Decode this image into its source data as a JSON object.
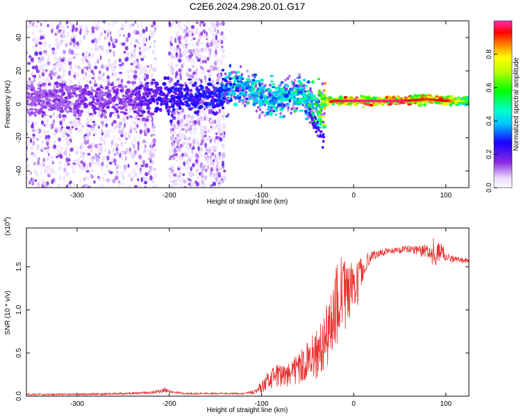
{
  "chart_data": [
    {
      "type": "heatmap",
      "title": "C2E6.2024.298.20.01.G17",
      "xlabel": "Height of straight line (km)",
      "ylabel": "Frequency (Hz)",
      "xlim": [
        -355,
        125
      ],
      "ylim": [
        -50,
        50
      ],
      "x_ticks": [
        -300,
        -200,
        -100,
        0,
        100
      ],
      "y_ticks": [
        -40,
        -20,
        0,
        20,
        40
      ],
      "colorbar": {
        "label": "Normalized spectral amplitude",
        "range": [
          0,
          1
        ],
        "ticks": [
          0.0,
          0.2,
          0.4,
          0.6,
          0.8
        ],
        "tick_labels": [
          "0.0",
          "0.2",
          "0.4",
          "0.6",
          "0.8"
        ]
      },
      "ridge": {
        "x": [
          -355,
          -300,
          -250,
          -200,
          -150,
          -130,
          -110,
          -90,
          -75,
          -60,
          -50,
          -40,
          -30,
          -20,
          0,
          50,
          80,
          100,
          125
        ],
        "frequency": [
          3,
          3,
          3,
          4,
          5,
          11,
          7,
          2,
          5,
          7,
          2,
          -3,
          1,
          2,
          2,
          2,
          3,
          2,
          2
        ],
        "amplitude": [
          0.15,
          0.18,
          0.18,
          0.3,
          0.32,
          0.5,
          0.52,
          0.5,
          0.5,
          0.55,
          0.55,
          0.62,
          0.9,
          0.95,
          0.98,
          0.98,
          0.9,
          0.95,
          0.6
        ]
      },
      "noise_bands": [
        [
          -355,
          -215
        ],
        [
          -200,
          -140
        ]
      ]
    },
    {
      "type": "line",
      "xlabel": "Height of straight line (km)",
      "ylabel": "SNR (10 * v/v)",
      "scale_label": "(x10",
      "scale_exponent": "4",
      "xlim": [
        -355,
        125
      ],
      "ylim": [
        0,
        1.95
      ],
      "x_ticks": [
        -300,
        -200,
        -100,
        0,
        100
      ],
      "y_ticks": [
        0.0,
        0.5,
        1.0,
        1.5
      ],
      "y_tick_labels": [
        "0.0",
        "0.5",
        "1.0",
        "1.5"
      ],
      "series": [
        {
          "name": "SNR",
          "color": "#e8302e",
          "x": [
            -355,
            -300,
            -250,
            -220,
            -205,
            -195,
            -180,
            -150,
            -120,
            -105,
            -100,
            -90,
            -80,
            -70,
            -60,
            -50,
            -45,
            -40,
            -35,
            -30,
            -25,
            -20,
            -15,
            -10,
            -5,
            0,
            5,
            10,
            15,
            20,
            25,
            30,
            40,
            50,
            60,
            70,
            80,
            85,
            90,
            95,
            100,
            110,
            125
          ],
          "values": [
            0.02,
            0.02,
            0.03,
            0.04,
            0.07,
            0.04,
            0.03,
            0.03,
            0.03,
            0.05,
            0.12,
            0.2,
            0.25,
            0.25,
            0.32,
            0.42,
            0.45,
            0.5,
            0.6,
            0.72,
            0.85,
            0.98,
            1.1,
            1.2,
            1.25,
            1.25,
            1.3,
            1.5,
            1.58,
            1.62,
            1.65,
            1.67,
            1.68,
            1.69,
            1.7,
            1.7,
            1.68,
            1.62,
            1.64,
            1.7,
            1.62,
            1.58,
            1.57
          ],
          "noise": [
            0.01,
            0.01,
            0.012,
            0.015,
            0.03,
            0.015,
            0.01,
            0.01,
            0.01,
            0.03,
            0.08,
            0.12,
            0.14,
            0.15,
            0.18,
            0.22,
            0.25,
            0.3,
            0.35,
            0.4,
            0.45,
            0.5,
            0.5,
            0.45,
            0.35,
            0.3,
            0.25,
            0.15,
            0.08,
            0.06,
            0.05,
            0.04,
            0.04,
            0.04,
            0.05,
            0.06,
            0.1,
            0.12,
            0.12,
            0.1,
            0.06,
            0.04,
            0.03
          ]
        }
      ]
    }
  ]
}
